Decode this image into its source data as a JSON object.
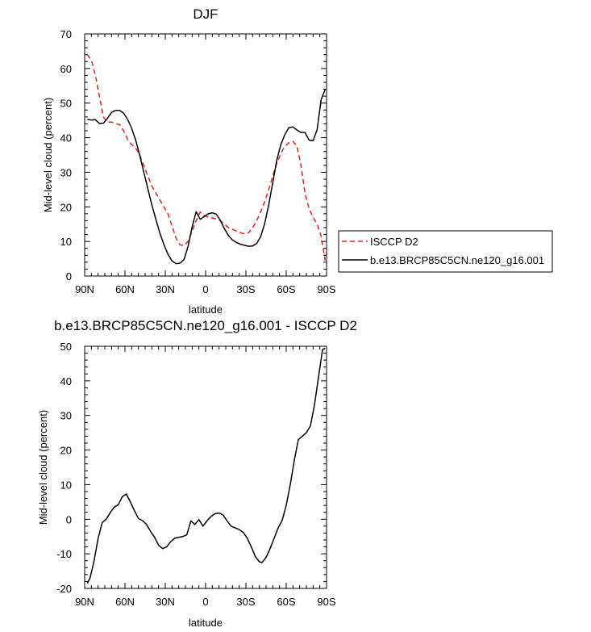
{
  "chart_data": [
    {
      "type": "line",
      "title": "DJF",
      "xlabel": "latitude",
      "ylabel": "Mid-level cloud (percent)",
      "xlim": [
        90,
        -90
      ],
      "ylim": [
        0,
        70
      ],
      "xticks": [
        90,
        60,
        30,
        0,
        -30,
        -60,
        -90
      ],
      "xticklabels": [
        "90N",
        "60N",
        "30N",
        "0",
        "30S",
        "60S",
        "90S"
      ],
      "yticks": [
        0,
        10,
        20,
        30,
        40,
        50,
        60,
        70
      ],
      "yticklabels": [
        "0",
        "10",
        "20",
        "30",
        "40",
        "50",
        "60",
        "70"
      ],
      "legend": {
        "position": "right",
        "entries": [
          "ISCCP D2",
          "b.e13.BRCP85C5CN.ne120_g16.001"
        ]
      },
      "series": [
        {
          "name": "ISCCP D2",
          "color": "#e0201b",
          "dash": true,
          "x": [
            88,
            85,
            82,
            79,
            76,
            73,
            70,
            67,
            64,
            61,
            58,
            55,
            52,
            49,
            46,
            43,
            40,
            37,
            34,
            31,
            28,
            25,
            22,
            19,
            16,
            13,
            10,
            7,
            4,
            1,
            -2,
            -5,
            -8,
            -11,
            -14,
            -17,
            -20,
            -23,
            -26,
            -29,
            -32,
            -35,
            -38,
            -41,
            -44,
            -47,
            -50,
            -53,
            -56,
            -59,
            -62,
            -65,
            -68,
            -71,
            -74,
            -77,
            -80,
            -83,
            -86,
            -89
          ],
          "values": [
            64,
            62.5,
            58,
            52,
            46,
            44.5,
            44.5,
            44,
            43.8,
            42,
            39.5,
            38,
            37,
            35,
            32,
            29,
            26,
            24,
            22,
            20,
            18,
            14.5,
            11,
            9,
            8.8,
            10,
            13,
            16,
            18.5,
            17.5,
            17,
            16.8,
            16.5,
            16,
            15,
            14,
            13.5,
            13,
            12.5,
            12.2,
            12.5,
            14,
            16,
            18.5,
            21.5,
            25,
            29,
            32.5,
            35.5,
            37.5,
            38.5,
            39,
            37.5,
            32,
            24,
            19.5,
            17,
            15,
            11.5,
            4.5
          ]
        },
        {
          "name": "b.e13.BRCP85C5CN.ne120_g16.001",
          "color": "#000000",
          "dash": false,
          "x": [
            88,
            85,
            82,
            79,
            76,
            73,
            70,
            67,
            64,
            61,
            58,
            55,
            52,
            49,
            46,
            43,
            40,
            37,
            34,
            31,
            28,
            25,
            22,
            19,
            16,
            13,
            10,
            7,
            4,
            1,
            -2,
            -5,
            -8,
            -11,
            -14,
            -17,
            -20,
            -23,
            -26,
            -29,
            -32,
            -35,
            -38,
            -41,
            -44,
            -47,
            -50,
            -53,
            -56,
            -59,
            -62,
            -65,
            -68,
            -71,
            -74,
            -77,
            -80,
            -83,
            -86,
            -89
          ],
          "values": [
            45.3,
            45.1,
            45.2,
            44.1,
            44.2,
            45.6,
            47.3,
            47.9,
            47.9,
            47.1,
            45.3,
            42.7,
            39.3,
            34.9,
            30.1,
            25.3,
            20.6,
            16.4,
            12.4,
            9.1,
            6.3,
            4.4,
            3.6,
            3.7,
            4.8,
            8.6,
            14.2,
            18.6,
            16.4,
            17.2,
            18.0,
            18.3,
            17.9,
            16.1,
            13.7,
            11.7,
            10.4,
            9.7,
            9.2,
            8.9,
            8.6,
            8.7,
            9.4,
            11.4,
            15.2,
            20.6,
            27.0,
            33.5,
            38.0,
            40.9,
            42.9,
            43.1,
            42.2,
            41.5,
            41.5,
            39.3,
            39.1,
            42.3,
            51.0,
            54.0
          ]
        }
      ]
    },
    {
      "type": "line",
      "title": "b.e13.BRCP85C5CN.ne120_g16.001 - ISCCP D2",
      "xlabel": "latitude",
      "ylabel": "Mid-level cloud (percent)",
      "xlim": [
        90,
        -90
      ],
      "ylim": [
        -20,
        50
      ],
      "xticks": [
        90,
        60,
        30,
        0,
        -30,
        -60,
        -90
      ],
      "xticklabels": [
        "90N",
        "60N",
        "30N",
        "0",
        "30S",
        "60S",
        "90S"
      ],
      "yticks": [
        -20,
        -10,
        0,
        10,
        20,
        30,
        40,
        50
      ],
      "yticklabels": [
        "-20",
        "-10",
        "0",
        "10",
        "20",
        "30",
        "40",
        "50"
      ],
      "series": [
        {
          "name": "b.e13.BRCP85C5CN.ne120_g16.001 - ISCCP D2",
          "color": "#000000",
          "dash": false,
          "x": [
            88,
            86,
            83,
            80,
            77,
            74,
            71,
            68,
            65,
            62,
            59,
            56,
            53,
            50,
            47,
            44,
            41,
            38,
            35,
            32,
            29,
            26,
            23,
            20,
            17,
            14,
            11,
            8,
            5,
            2,
            -1,
            -4,
            -7,
            -10,
            -13,
            -16,
            -19,
            -22,
            -25,
            -28,
            -31,
            -34,
            -37,
            -40,
            -42,
            -45,
            -48,
            -51,
            -54,
            -57,
            -60,
            -63,
            -66,
            -69,
            -72,
            -75,
            -78,
            -81,
            -84,
            -87,
            -89
          ],
          "values": [
            -18.5,
            -17,
            -12,
            -5.5,
            -1,
            0,
            1.9,
            3.5,
            4.2,
            6.5,
            7.3,
            5,
            2.5,
            0.2,
            -0.4,
            -1.5,
            -3.5,
            -5.2,
            -7.5,
            -8.5,
            -8,
            -6.5,
            -5.5,
            -5.2,
            -5,
            -4.5,
            -0.5,
            -1.5,
            -0.1,
            -2,
            -0.5,
            0.8,
            1.6,
            1.8,
            1.2,
            -0.5,
            -2,
            -2.5,
            -3,
            -3.8,
            -5.5,
            -8,
            -10.8,
            -12.3,
            -12.5,
            -11,
            -8.5,
            -5.5,
            -2.5,
            -0.3,
            4,
            10,
            17,
            23,
            24,
            25,
            27,
            33,
            41,
            49,
            49.5
          ]
        }
      ]
    }
  ]
}
